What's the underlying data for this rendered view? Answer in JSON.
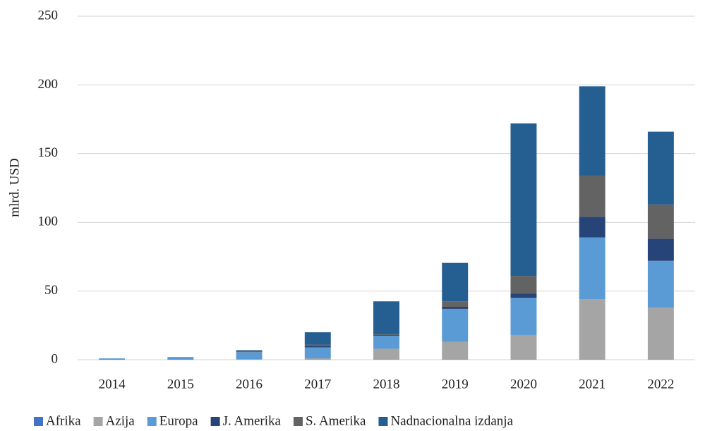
{
  "chart_data": {
    "type": "stacked_bar",
    "y_label": "mlrd. USD",
    "categories": [
      "2014",
      "2015",
      "2016",
      "2017",
      "2018",
      "2019",
      "2020",
      "2021",
      "2022"
    ],
    "series": [
      {
        "name": "Afrika",
        "color": "#4472c4",
        "values": [
          0,
          0,
          0,
          0,
          0,
          0,
          0,
          0,
          0
        ]
      },
      {
        "name": "Azija",
        "color": "#a5a5a5",
        "values": [
          0,
          0,
          0.5,
          1,
          8,
          13,
          18,
          44,
          38
        ]
      },
      {
        "name": "Europa",
        "color": "#5b9bd5",
        "values": [
          1,
          2,
          5,
          8,
          9.5,
          24,
          27,
          45,
          34
        ]
      },
      {
        "name": "J. Amerika",
        "color": "#264478",
        "values": [
          0,
          0,
          0,
          1,
          0.5,
          1.5,
          3,
          15,
          16
        ]
      },
      {
        "name": "S. Amerika",
        "color": "#636363",
        "values": [
          0,
          0,
          1,
          1,
          0.5,
          4,
          13,
          30,
          25
        ]
      },
      {
        "name": "Nadnacionalna izdanja",
        "color": "#255e91",
        "values": [
          0,
          0,
          0.5,
          9,
          24,
          28,
          111,
          65,
          53
        ]
      }
    ],
    "ylim": [
      0,
      250
    ],
    "yticks": [
      0,
      50,
      100,
      150,
      200,
      250
    ],
    "grid": true,
    "legend": "bottom"
  }
}
